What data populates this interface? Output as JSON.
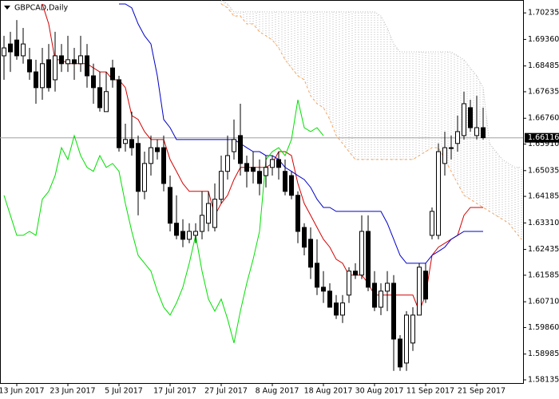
{
  "chart_data": {
    "type": "candlestick",
    "title": "GBPCAD,Daily",
    "categories": [
      null,
      null,
      "13 Jun 2017",
      null,
      null,
      null,
      null,
      null,
      null,
      null,
      "23 Jun 2017",
      null,
      null,
      null,
      null,
      null,
      null,
      null,
      "5 Jul 2017",
      null,
      null,
      null,
      null,
      null,
      null,
      null,
      "17 Jul 2017",
      null,
      null,
      null,
      null,
      null,
      null,
      null,
      "27 Jul 2017",
      null,
      null,
      null,
      null,
      null,
      null,
      null,
      "8 Aug 2017",
      null,
      null,
      null,
      null,
      null,
      null,
      null,
      "18 Aug 2017",
      null,
      null,
      null,
      null,
      null,
      null,
      null,
      "30 Aug 2017",
      null,
      null,
      null,
      null,
      null,
      null,
      null,
      "11 Sep 2017",
      null,
      null,
      null,
      null,
      null,
      null,
      null,
      "21 Sep 2017",
      null,
      null,
      null,
      null,
      null,
      null,
      null
    ],
    "open": [
      1.6882,
      1.6921,
      1.6934,
      1.6882,
      1.6869,
      1.6829,
      1.6777,
      1.6869,
      1.6803,
      1.6882,
      1.6856,
      1.6869,
      1.6856,
      1.6882,
      1.6816,
      1.6777,
      1.6698,
      1.6842,
      1.6803,
      1.6593,
      1.6606,
      1.6593,
      1.6435,
      1.6527,
      1.6579,
      1.6579,
      1.6448,
      1.633,
      1.6303,
      1.6277,
      1.629,
      1.6303,
      1.633,
      1.6316,
      1.6409,
      1.6501,
      1.6566,
      1.6619,
      1.6527,
      1.6514,
      1.6501,
      1.6487,
      1.6514,
      1.654,
      1.6501,
      1.6487,
      1.6422,
      1.6316,
      1.6277,
      1.6198,
      1.6119,
      1.6106,
      1.6067,
      1.6027,
      1.6093,
      1.6172,
      1.6159,
      1.6303,
      1.6132,
      1.6053,
      1.6106,
      1.6132,
      1.5948,
      1.5869,
      1.5935,
      1.6027,
      1.6172,
      1.629,
      1.629,
      1.6527,
      1.6579,
      1.6593,
      1.6619,
      1.6711,
      1.6619,
      1.6645,
      null,
      null,
      null,
      null,
      null,
      null
    ],
    "high": [
      1.6948,
      1.6961,
      1.7,
      1.6974,
      1.6908,
      1.6869,
      1.6908,
      1.6921,
      1.6961,
      1.6921,
      1.6948,
      1.6908,
      1.6948,
      1.6921,
      1.6856,
      1.6829,
      1.6829,
      1.6869,
      1.6816,
      1.6658,
      1.6698,
      1.6619,
      1.6566,
      1.6619,
      1.6606,
      1.6619,
      1.6487,
      1.6422,
      1.6343,
      1.633,
      1.633,
      1.6435,
      1.6435,
      1.6461,
      1.6553,
      1.6619,
      1.6672,
      1.6724,
      1.6553,
      1.6566,
      1.654,
      1.6553,
      1.6553,
      1.6566,
      1.654,
      1.6501,
      1.6435,
      1.633,
      1.6316,
      1.6277,
      1.6172,
      1.6132,
      1.6093,
      1.6093,
      1.6185,
      1.6198,
      1.6356,
      1.6356,
      1.6172,
      1.6132,
      1.6172,
      1.6159,
      1.5961,
      1.604,
      1.6053,
      1.6198,
      1.6198,
      1.6382,
      1.6593,
      1.6632,
      1.6619,
      1.6685,
      1.6764,
      1.6737,
      1.675,
      1.6711,
      null,
      null,
      null,
      null,
      null,
      null
    ],
    "low": [
      1.6803,
      1.6829,
      1.6869,
      1.6856,
      1.6803,
      1.6724,
      1.6737,
      1.6764,
      1.6764,
      1.6829,
      1.6829,
      1.6803,
      1.6829,
      1.6777,
      1.6724,
      1.6698,
      1.6698,
      1.6777,
      1.6566,
      1.6566,
      1.6553,
      1.6356,
      1.6409,
      1.6487,
      1.654,
      1.6435,
      1.6303,
      1.6277,
      1.6251,
      1.6264,
      1.6264,
      1.6277,
      1.6303,
      1.6303,
      1.6395,
      1.6474,
      1.654,
      1.6487,
      1.6448,
      1.6461,
      1.6422,
      1.6448,
      1.6487,
      1.6474,
      1.6422,
      1.6409,
      1.6264,
      1.6224,
      1.6146,
      1.6093,
      1.6067,
      1.6053,
      1.6014,
      1.6001,
      1.6067,
      1.6146,
      1.6146,
      1.6106,
      1.604,
      1.6027,
      1.604,
      1.5843,
      1.5843,
      1.5843,
      1.5909,
      1.6027,
      1.6067,
      1.6277,
      1.6277,
      1.6487,
      1.654,
      1.6566,
      1.6606,
      1.6632,
      1.6606,
      1.6606,
      null,
      null,
      null,
      null,
      null,
      null
    ],
    "close": [
      1.6908,
      1.6895,
      1.6882,
      1.6921,
      1.6829,
      1.6777,
      1.6856,
      1.6777,
      1.6882,
      1.6856,
      1.6869,
      1.6856,
      1.6882,
      1.6816,
      1.6777,
      1.6711,
      1.6764,
      1.6803,
      1.6579,
      1.6606,
      1.6579,
      1.6435,
      1.6527,
      1.6579,
      1.6566,
      1.6461,
      1.633,
      1.629,
      1.6277,
      1.6303,
      1.6303,
      1.6356,
      1.6395,
      1.6409,
      1.6501,
      1.6553,
      1.6606,
      1.6527,
      1.6501,
      1.6501,
      1.6461,
      1.6514,
      1.654,
      1.6514,
      1.6435,
      1.6422,
      1.6303,
      1.6251,
      1.6185,
      1.6119,
      1.6106,
      1.6053,
      1.6027,
      1.6067,
      1.6172,
      1.6159,
      1.6303,
      1.6119,
      1.6053,
      1.6106,
      1.6132,
      1.5948,
      1.5856,
      1.6027,
      1.6027,
      1.6185,
      1.608,
      1.6369,
      1.6566,
      1.6579,
      1.6579,
      1.6632,
      1.6724,
      1.6645,
      1.6645,
      1.6612,
      null,
      null,
      null,
      null,
      null,
      null
    ],
    "up_color": "#ffffff",
    "down_color": "#000000",
    "outline_color": "#000000",
    "series": [
      {
        "color": "#d40000",
        "values": [
          null,
          null,
          null,
          null,
          null,
          null,
          1.7053,
          1.6987,
          1.6869,
          1.6869,
          1.6856,
          1.6856,
          1.6856,
          1.6856,
          1.6842,
          1.6829,
          1.6829,
          1.6803,
          1.6803,
          1.6777,
          1.6685,
          1.6672,
          1.6632,
          1.6606,
          1.6606,
          1.6606,
          1.654,
          1.6501,
          1.6461,
          1.6435,
          1.6435,
          1.6435,
          1.6435,
          1.6356,
          1.6395,
          1.6422,
          1.6474,
          1.6514,
          1.6514,
          1.6514,
          1.6514,
          1.6514,
          1.6527,
          1.6566,
          1.6566,
          1.6553,
          1.6461,
          1.6395,
          1.6356,
          1.6316,
          1.6277,
          1.6251,
          1.6211,
          1.6198,
          1.6159,
          1.6159,
          1.6159,
          1.6132,
          1.6093,
          1.6093,
          1.6093,
          1.6093,
          1.6093,
          1.6093,
          1.6093,
          1.604,
          1.6093,
          1.6224,
          1.6251,
          1.6264,
          1.6277,
          1.629,
          1.6356,
          1.6382,
          1.6382,
          1.6382,
          null,
          null,
          null,
          null,
          null,
          null
        ]
      },
      {
        "color": "#0000c8",
        "values": [
          null,
          null,
          null,
          null,
          null,
          null,
          null,
          null,
          null,
          null,
          null,
          null,
          null,
          null,
          null,
          null,
          null,
          null,
          1.7053,
          1.7053,
          1.704,
          1.6987,
          1.6948,
          1.6921,
          1.6816,
          1.6672,
          1.6645,
          1.6606,
          1.6606,
          1.6606,
          1.6606,
          1.6606,
          1.6606,
          1.6606,
          1.6606,
          1.6606,
          1.6606,
          1.6593,
          1.6579,
          1.6566,
          1.6566,
          1.6553,
          1.6553,
          1.654,
          1.6514,
          1.6501,
          1.6487,
          1.6474,
          1.6448,
          1.6409,
          1.6382,
          1.6382,
          1.6369,
          1.6369,
          1.6369,
          1.6369,
          1.6369,
          1.6369,
          1.6369,
          1.6369,
          1.633,
          1.6277,
          1.6224,
          1.6198,
          1.6198,
          1.6198,
          1.6198,
          1.6224,
          1.6237,
          1.6251,
          1.6277,
          1.629,
          1.6303,
          1.6303,
          1.6303,
          1.6303,
          null,
          null,
          null,
          null,
          null,
          null
        ]
      },
      {
        "color": "#00e000",
        "values": [
          1.6422,
          1.6356,
          1.629,
          1.629,
          1.6303,
          1.629,
          1.6409,
          1.6435,
          1.6487,
          1.6579,
          1.654,
          1.6619,
          1.6553,
          1.6514,
          1.6501,
          1.6553,
          1.6514,
          1.6527,
          1.6501,
          1.6395,
          1.6303,
          1.6224,
          1.6198,
          1.6172,
          1.6106,
          1.6053,
          1.6027,
          1.6067,
          1.6119,
          1.6198,
          1.629,
          1.6172,
          1.608,
          1.604,
          1.608,
          1.6014,
          1.5935,
          1.604,
          1.6132,
          1.6211,
          1.6303,
          1.654,
          1.6566,
          1.6579,
          1.6553,
          1.6606,
          1.6737,
          1.6645,
          1.6632,
          1.6645,
          1.6619,
          null,
          null,
          null,
          null,
          null,
          null,
          null,
          null,
          null,
          null,
          null,
          null,
          null,
          null,
          null,
          null,
          null,
          null,
          null,
          null,
          null,
          null,
          null,
          null,
          null,
          null,
          null,
          null,
          null,
          null,
          null
        ]
      }
    ],
    "cloud": {
      "hatch_color": "#b8b8b8",
      "span_a": {
        "color": "#f4a460",
        "values": [
          null,
          null,
          null,
          null,
          null,
          null,
          null,
          null,
          null,
          null,
          null,
          null,
          null,
          null,
          null,
          null,
          null,
          null,
          null,
          null,
          null,
          null,
          null,
          null,
          null,
          null,
          null,
          null,
          null,
          null,
          null,
          null,
          null,
          null,
          1.7053,
          1.704,
          1.7013,
          1.7013,
          1.6987,
          1.6987,
          1.6961,
          1.6948,
          1.6934,
          1.6908,
          1.6869,
          1.6842,
          1.6816,
          1.6803,
          1.675,
          1.6724,
          1.6711,
          1.6672,
          1.6619,
          1.6593,
          1.6566,
          1.654,
          1.654,
          1.654,
          1.654,
          1.654,
          1.654,
          1.654,
          1.654,
          1.654,
          1.654,
          1.6553,
          1.6566,
          1.6579,
          1.6579,
          1.654,
          1.6501,
          1.6461,
          1.6422,
          1.6409,
          1.6395,
          1.6382,
          1.6369,
          1.6356,
          1.6343,
          1.633,
          1.6303,
          1.6277
        ]
      },
      "span_b": {
        "color": "#b8b8b8",
        "values": [
          null,
          null,
          null,
          null,
          null,
          null,
          null,
          null,
          null,
          null,
          null,
          null,
          null,
          null,
          null,
          null,
          null,
          null,
          null,
          null,
          null,
          null,
          null,
          null,
          null,
          null,
          null,
          null,
          null,
          null,
          null,
          null,
          null,
          null,
          1.7066,
          1.7053,
          1.7027,
          1.7027,
          1.7027,
          1.7027,
          1.7027,
          1.7027,
          1.7027,
          1.7027,
          1.7027,
          1.7027,
          1.7027,
          1.7027,
          1.7027,
          1.7027,
          1.7027,
          1.7027,
          1.7027,
          1.7027,
          1.7027,
          1.7027,
          1.7027,
          1.7027,
          1.7027,
          1.7013,
          1.6974,
          1.6921,
          1.6895,
          1.6895,
          1.6895,
          1.6895,
          1.6895,
          1.6895,
          1.6895,
          1.6895,
          1.6895,
          1.6882,
          1.6869,
          1.6842,
          1.6816,
          1.6777,
          1.6593,
          1.6566,
          1.654,
          1.6527,
          1.6514,
          1.6514
        ]
      }
    },
    "current_price": 1.66116,
    "ylim": [
      1.5803,
      1.7066
    ],
    "yticks": [
      1.70235,
      {
        "value": 1.6936,
        "label": "1.69360"
      },
      1.68485,
      1.67635,
      {
        "value": 1.6676,
        "label": "1.66760"
      },
      {
        "value": 1.6591,
        "label": "1.65910"
      },
      1.65035,
      1.64185,
      {
        "value": 1.6331,
        "label": "1.63310"
      },
      1.62435,
      1.61585,
      {
        "value": 1.6071,
        "label": "1.60710"
      },
      {
        "value": 1.5986,
        "label": "1.59860"
      },
      1.58985,
      1.58135
    ]
  }
}
